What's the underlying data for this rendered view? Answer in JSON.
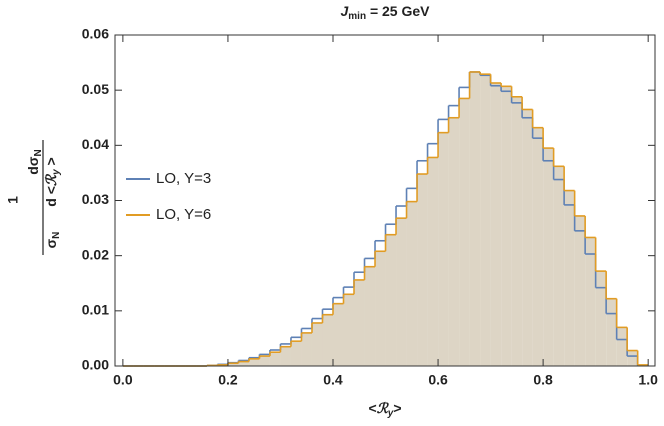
{
  "chart_data": {
    "type": "histogram",
    "title": [
      "J",
      "min",
      " = 25 GeV"
    ],
    "x_label": [
      "<",
      "ℛ",
      "y",
      ">"
    ],
    "y_label": {
      "one": "1",
      "num": [
        "dσ",
        "N"
      ],
      "den1": [
        "σ",
        "N"
      ],
      "den2": [
        "d <",
        "ℛ",
        "y",
        " >"
      ]
    },
    "bins": [
      0,
      0.02,
      0.04,
      0.06,
      0.08,
      0.1,
      0.12,
      0.14,
      0.16,
      0.18,
      0.2,
      0.22,
      0.24,
      0.26,
      0.28,
      0.3,
      0.32,
      0.34,
      0.36,
      0.38,
      0.4,
      0.42,
      0.44,
      0.46,
      0.48,
      0.5,
      0.52,
      0.54,
      0.56,
      0.58,
      0.6,
      0.62,
      0.64,
      0.66,
      0.68,
      0.7,
      0.72,
      0.74,
      0.76,
      0.78,
      0.8,
      0.82,
      0.84,
      0.86,
      0.88,
      0.9,
      0.92,
      0.94,
      0.96,
      0.98,
      1.0
    ],
    "series": [
      {
        "name": "LO, Y=3",
        "color": "#5e81b5",
        "values": [
          0,
          0,
          0,
          0,
          0,
          0,
          0,
          0,
          0.0001,
          0.0003,
          0.0006,
          0.001,
          0.0015,
          0.0021,
          0.0029,
          0.004,
          0.0052,
          0.0068,
          0.0086,
          0.0103,
          0.0124,
          0.0143,
          0.017,
          0.0195,
          0.0227,
          0.0257,
          0.029,
          0.0322,
          0.0372,
          0.0403,
          0.0447,
          0.0472,
          0.0505,
          0.0533,
          0.0527,
          0.0508,
          0.0498,
          0.0477,
          0.045,
          0.0413,
          0.0372,
          0.0338,
          0.0292,
          0.0245,
          0.0203,
          0.0142,
          0.0095,
          0.0048,
          0.0018,
          0.0001
        ]
      },
      {
        "name": "LO, Y=6",
        "color": "#e19c24",
        "values": [
          0,
          0,
          0,
          0,
          0,
          0,
          0,
          0,
          0.0001,
          0.0002,
          0.0005,
          0.0008,
          0.0013,
          0.0018,
          0.0025,
          0.0035,
          0.0045,
          0.006,
          0.0078,
          0.0093,
          0.0113,
          0.013,
          0.0156,
          0.018,
          0.0208,
          0.0238,
          0.0268,
          0.0298,
          0.0348,
          0.0378,
          0.0423,
          0.045,
          0.0485,
          0.0533,
          0.0529,
          0.0513,
          0.0507,
          0.0488,
          0.0465,
          0.0432,
          0.0395,
          0.0362,
          0.0318,
          0.0272,
          0.0233,
          0.0172,
          0.0122,
          0.007,
          0.0028,
          0.0002
        ]
      }
    ],
    "xlim": [
      -0.015,
      1.013
    ],
    "ylim": [
      0,
      0.06
    ],
    "xticks": [
      {
        "value": 0,
        "label": "0.0"
      },
      {
        "value": 0.2,
        "label": "0.2"
      },
      {
        "value": 0.4,
        "label": "0.4"
      },
      {
        "value": 0.6,
        "label": "0.6"
      },
      {
        "value": 0.8,
        "label": "0.8"
      },
      {
        "value": 1,
        "label": "1.0"
      }
    ],
    "yticks": [
      {
        "value": 0,
        "label": "0.00"
      },
      {
        "value": 0.01,
        "label": "0.01"
      },
      {
        "value": 0.02,
        "label": "0.02"
      },
      {
        "value": 0.03,
        "label": "0.03"
      },
      {
        "value": 0.04,
        "label": "0.04"
      },
      {
        "value": 0.05,
        "label": "0.05"
      },
      {
        "value": 0.06,
        "label": "0.06"
      }
    ],
    "fill": "#ddd5c5",
    "legend": "left"
  }
}
